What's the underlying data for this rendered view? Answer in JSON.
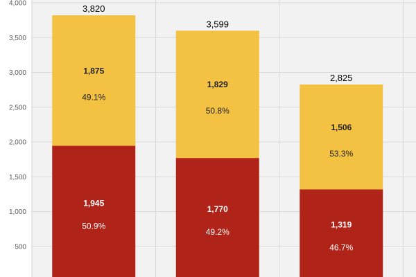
{
  "chart_data": {
    "type": "bar",
    "stacked": true,
    "categories": [
      "",
      "",
      ""
    ],
    "series": [
      {
        "values": [
          1945,
          1770,
          1319
        ],
        "percent_labels": [
          "50.9%",
          "49.2%",
          "46.7%"
        ],
        "color": "#b02318"
      },
      {
        "values": [
          1875,
          1829,
          1506
        ],
        "percent_labels": [
          "49.1%",
          "50.8%",
          "53.3%"
        ],
        "color": "#f4c242"
      }
    ],
    "totals": [
      3820,
      3599,
      2825
    ],
    "total_labels": [
      "3,820",
      "3,599",
      "2,825"
    ],
    "y_ticks": [
      500,
      1000,
      1500,
      2000,
      2500,
      3000,
      3500,
      4000
    ],
    "y_tick_labels": [
      "500",
      "1,000",
      "1,500",
      "2,000",
      "2,500",
      "3,000",
      "3,500",
      "4,000"
    ],
    "ylim": [
      0,
      4000
    ],
    "grid": true,
    "title": "",
    "xlabel": "",
    "ylabel": "",
    "colors": {
      "background": "#f2f2f2",
      "grid": "#d9d9d9",
      "bottom_label": "#ffffff",
      "top_label": "#222222"
    }
  }
}
